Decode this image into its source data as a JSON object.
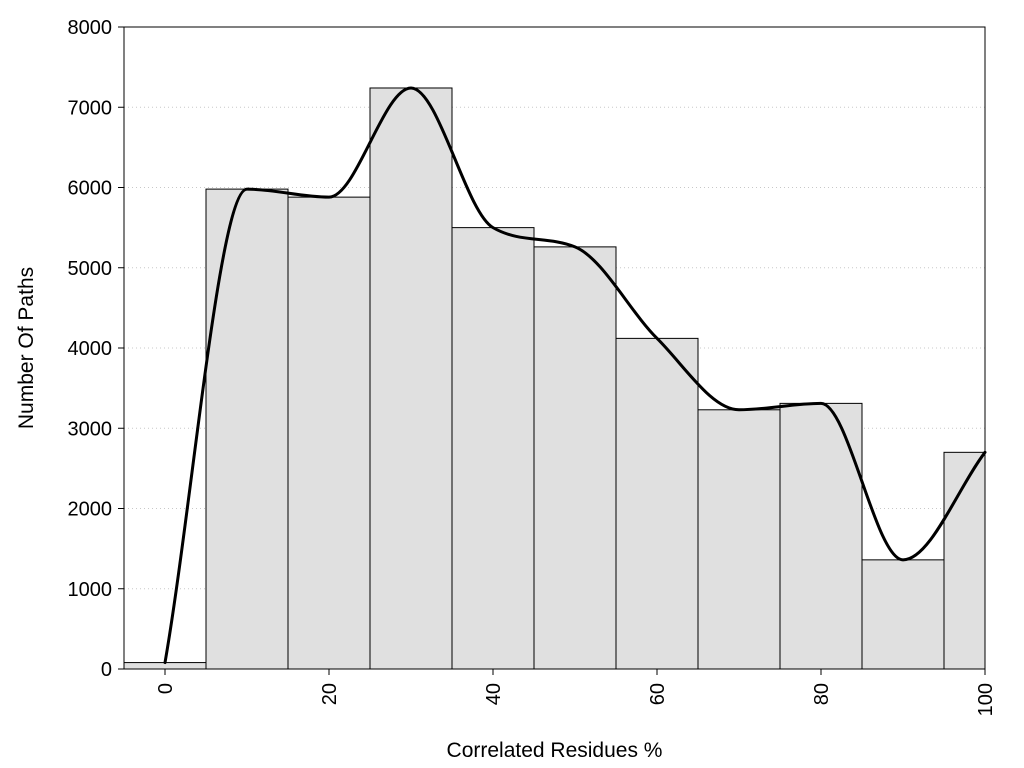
{
  "chart_data": {
    "type": "bar",
    "xlabel": "Correlated Residues %",
    "ylabel": "Number Of Paths",
    "xlim": [
      -5,
      100
    ],
    "ylim": [
      0,
      8000
    ],
    "x_ticks": [
      0,
      20,
      40,
      60,
      80,
      100
    ],
    "y_ticks": [
      0,
      1000,
      2000,
      3000,
      4000,
      5000,
      6000,
      7000,
      8000
    ],
    "grid": "horizontal dotted",
    "bar_color": "#e0e0e0",
    "bins": [
      {
        "start": -5,
        "end": 5,
        "value": 80
      },
      {
        "start": 5,
        "end": 15,
        "value": 5980
      },
      {
        "start": 15,
        "end": 25,
        "value": 5880
      },
      {
        "start": 25,
        "end": 35,
        "value": 7240
      },
      {
        "start": 35,
        "end": 45,
        "value": 5500
      },
      {
        "start": 45,
        "end": 55,
        "value": 5260
      },
      {
        "start": 55,
        "end": 65,
        "value": 4120
      },
      {
        "start": 65,
        "end": 75,
        "value": 3230
      },
      {
        "start": 75,
        "end": 85,
        "value": 3310
      },
      {
        "start": 85,
        "end": 95,
        "value": 1360
      },
      {
        "start": 95,
        "end": 100,
        "value": 2700
      }
    ],
    "curve": {
      "x": [
        0,
        10,
        20,
        30,
        40,
        50,
        60,
        70,
        80,
        90,
        100
      ],
      "y": [
        80,
        5980,
        5880,
        7240,
        5500,
        5260,
        4120,
        3230,
        3310,
        1360,
        2700
      ]
    }
  }
}
